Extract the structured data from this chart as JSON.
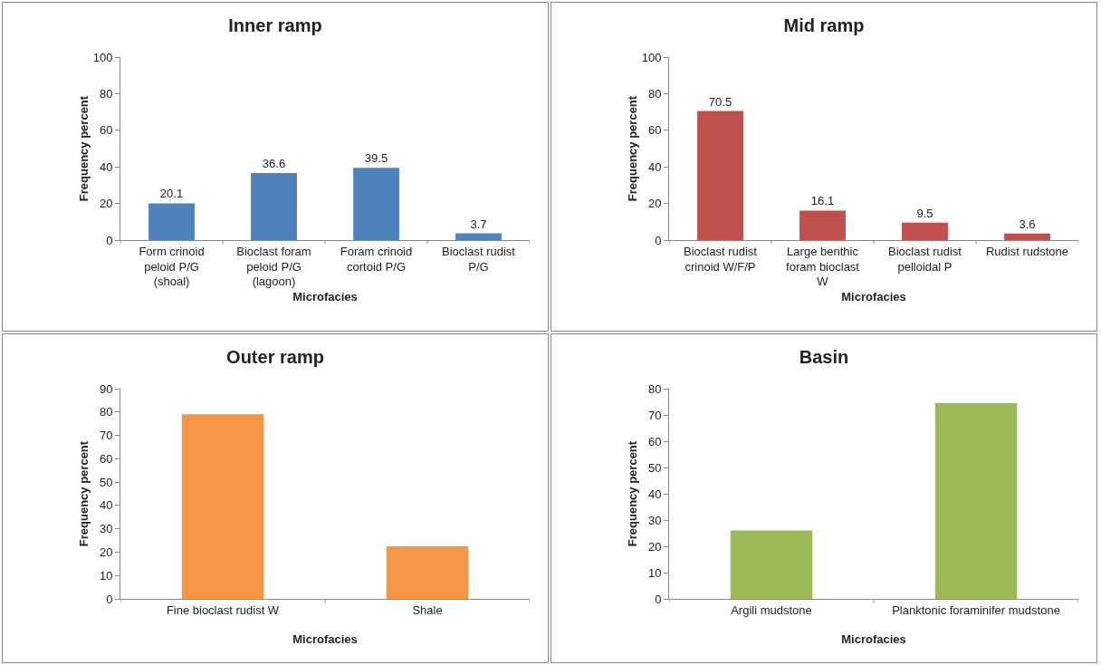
{
  "chart_data": [
    {
      "type": "bar",
      "title": "Inner ramp",
      "xlabel": "Microfacies",
      "ylabel": "Frequency percent",
      "categories": [
        "Form crinoid peloid P/G (shoal)",
        "Bioclast foram peloid P/G (lagoon)",
        "Foram crinoid cortoid P/G",
        "Bioclast rudist P/G"
      ],
      "values": [
        20.1,
        36.6,
        39.5,
        3.7
      ],
      "color": "#4f81bd",
      "ylim": [
        0,
        100
      ],
      "yticks": [
        0,
        20,
        40,
        60,
        80,
        100
      ],
      "data_labels": true,
      "grid": false
    },
    {
      "type": "bar",
      "title": "Mid ramp",
      "xlabel": "Microfacies",
      "ylabel": "Frequency percent",
      "categories": [
        "Bioclast rudist crinoid W/F/P",
        "Large benthic foram bioclast W",
        "Bioclast rudist pelloidal P",
        "Rudist rudstone"
      ],
      "values": [
        70.5,
        16.1,
        9.5,
        3.6
      ],
      "color": "#c0504d",
      "ylim": [
        0,
        100
      ],
      "yticks": [
        0,
        20,
        40,
        60,
        80,
        100
      ],
      "data_labels": true,
      "grid": false
    },
    {
      "type": "bar",
      "title": "Outer ramp",
      "xlabel": "Microfacies",
      "ylabel": "Frequency percent",
      "categories": [
        "Fine bioclast rudist W",
        "Shale"
      ],
      "values": [
        79,
        22.5
      ],
      "color": "#f79646",
      "ylim": [
        0,
        90
      ],
      "yticks": [
        0,
        10,
        20,
        30,
        40,
        50,
        60,
        70,
        80,
        90
      ],
      "grid": false
    },
    {
      "type": "bar",
      "title": "Basin",
      "xlabel": "Microfacies",
      "ylabel": "Frequency percent",
      "categories": [
        "Argili mudstone",
        "Planktonic foraminifer mudstone"
      ],
      "values": [
        26,
        74.5
      ],
      "color": "#9bbb59",
      "ylim": [
        0,
        80
      ],
      "yticks": [
        0,
        10,
        20,
        30,
        40,
        50,
        60,
        70,
        80
      ],
      "grid": false
    }
  ]
}
